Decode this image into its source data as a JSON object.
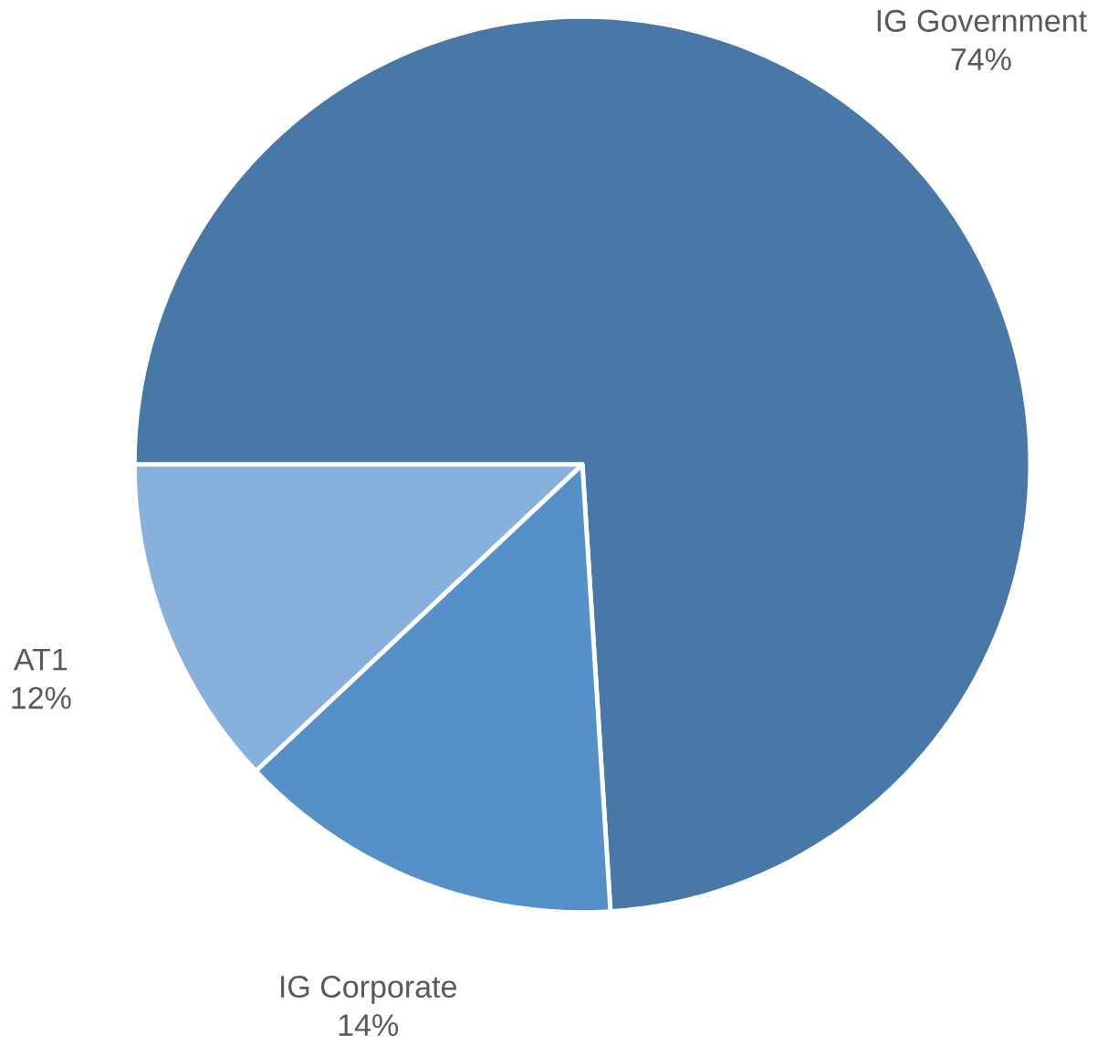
{
  "chart_data": {
    "type": "pie",
    "categories": [
      "IG Government",
      "IG Corporate",
      "AT1"
    ],
    "values": [
      74,
      14,
      12
    ],
    "value_labels": [
      "74%",
      "14%",
      "12%"
    ],
    "colors": [
      "#4878a8",
      "#5590c8",
      "#88b0dc"
    ]
  }
}
